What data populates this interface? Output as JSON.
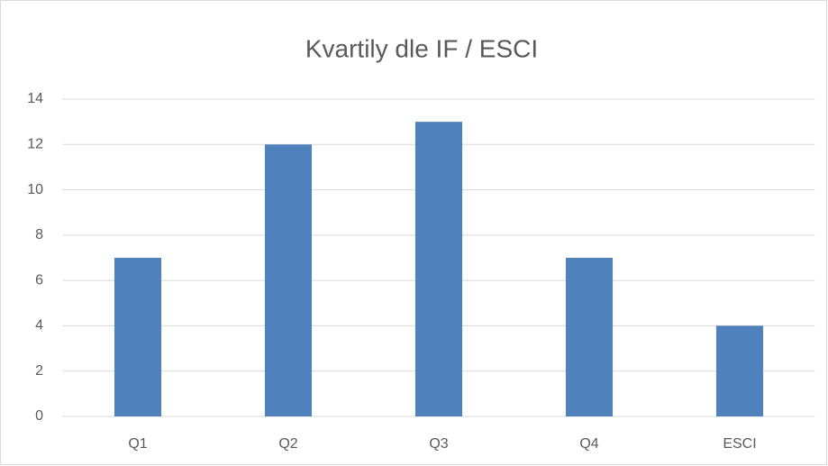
{
  "chart_data": {
    "type": "bar",
    "title": "Kvartily dle IF / ESCI",
    "categories": [
      "Q1",
      "Q2",
      "Q3",
      "Q4",
      "ESCI"
    ],
    "values": [
      7,
      12,
      13,
      7,
      4
    ],
    "color": "#4f81bd",
    "ylim": [
      0,
      14
    ],
    "yticks": [
      0,
      2,
      4,
      6,
      8,
      10,
      12,
      14
    ],
    "grid": true
  }
}
